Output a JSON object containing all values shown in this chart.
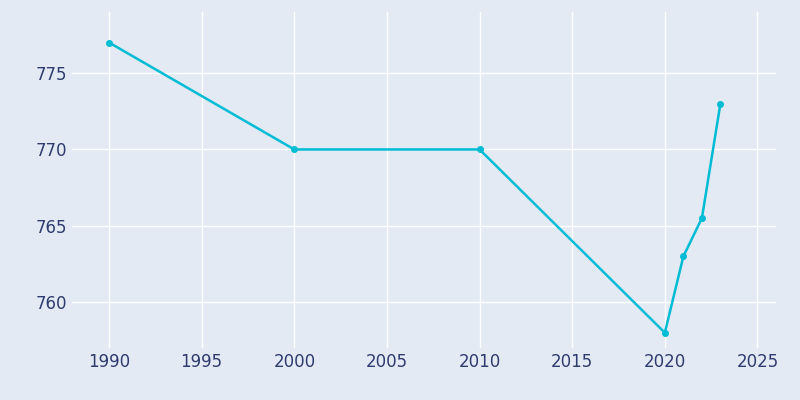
{
  "x": [
    1990,
    2000,
    2010,
    2020,
    2021,
    2022,
    2023
  ],
  "y": [
    777,
    770,
    770,
    758,
    763,
    765.5,
    773
  ],
  "line_color": "#00BCD4",
  "marker": "o",
  "marker_size": 4,
  "linewidth": 1.8,
  "background_color": "#E3EAF4",
  "grid_color": "#FFFFFF",
  "xlim": [
    1988,
    2026
  ],
  "ylim": [
    757,
    779
  ],
  "xticks": [
    1990,
    1995,
    2000,
    2005,
    2010,
    2015,
    2020,
    2025
  ],
  "yticks": [
    760,
    765,
    770,
    775
  ],
  "tick_color": "#2E3B6E",
  "tick_fontsize": 12
}
